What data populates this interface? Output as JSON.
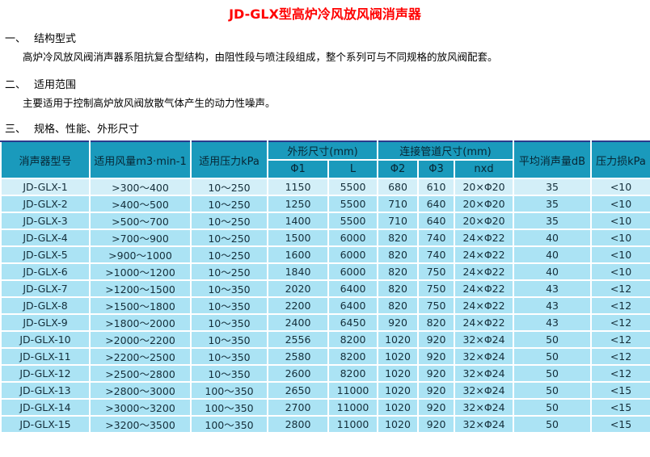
{
  "page": {
    "title": "JD-GLX型高炉冷风放风阀消声器"
  },
  "sections": [
    {
      "num": "一、",
      "title": "结构型式",
      "body": "高炉冷风放风阀消声器系阻抗复合型结构，由阻性段与喷注段组成，整个系列可与不同规格的放风阀配套。"
    },
    {
      "num": "二、",
      "title": "适用范围",
      "body": "主要适用于控制高炉放风阀放散气体产生的动力性噪声。"
    },
    {
      "num": "三、",
      "title": "规格、性能、外形尺寸",
      "body": ""
    }
  ],
  "table": {
    "column_keys": [
      "model",
      "air-volume",
      "pressure",
      "phi1",
      "length",
      "phi2",
      "phi3",
      "nxd",
      "noise-reduction",
      "pressure-loss"
    ],
    "header": {
      "model": "消声器型号",
      "air_volume": "适用风量m3·min-1",
      "pressure": "适用压力kPa",
      "outline_group": "外形尺寸(mm)",
      "phi1": "Φ1",
      "length": "L",
      "pipe_group": "连接管道尺寸(mm)",
      "phi2": "Φ2",
      "phi3": "Φ3",
      "nxd": "nxd",
      "noise_reduction": "平均消声量dB",
      "pressure_loss": "压力损kPa"
    },
    "rows": [
      [
        "JD-GLX-1",
        ">300～400",
        "10～250",
        "1150",
        "5500",
        "680",
        "610",
        "20×Φ20",
        "35",
        "<10"
      ],
      [
        "JD-GLX-2",
        ">400～500",
        "10～250",
        "1250",
        "5500",
        "710",
        "640",
        "20×Φ20",
        "35",
        "<10"
      ],
      [
        "JD-GLX-3",
        ">500～700",
        "10～250",
        "1400",
        "5500",
        "710",
        "640",
        "20×Φ20",
        "35",
        "<10"
      ],
      [
        "JD-GLX-4",
        ">700～900",
        "10～250",
        "1500",
        "6000",
        "820",
        "740",
        "24×Φ22",
        "40",
        "<10"
      ],
      [
        "JD-GLX-5",
        ">900～1000",
        "10～250",
        "1600",
        "6000",
        "820",
        "740",
        "24×Φ22",
        "40",
        "<10"
      ],
      [
        "JD-GLX-6",
        ">1000～1200",
        "10～250",
        "1840",
        "6000",
        "820",
        "750",
        "24×Φ22",
        "40",
        "<10"
      ],
      [
        "JD-GLX-7",
        ">1200～1500",
        "10～350",
        "2020",
        "6400",
        "820",
        "750",
        "24×Φ22",
        "43",
        "<12"
      ],
      [
        "JD-GLX-8",
        ">1500～1800",
        "10～350",
        "2200",
        "6400",
        "820",
        "750",
        "24×Φ22",
        "43",
        "<12"
      ],
      [
        "JD-GLX-9",
        ">1800～2000",
        "10～350",
        "2400",
        "6450",
        "920",
        "820",
        "24×Φ22",
        "43",
        "<12"
      ],
      [
        "JD-GLX-10",
        ">2000～2200",
        "10～350",
        "2556",
        "8200",
        "1020",
        "920",
        "32×Φ24",
        "50",
        "<12"
      ],
      [
        "JD-GLX-11",
        ">2200～2500",
        "10～350",
        "2580",
        "8200",
        "1020",
        "920",
        "32×Φ24",
        "50",
        "<12"
      ],
      [
        "JD-GLX-12",
        ">2500～2800",
        "10～350",
        "2600",
        "8200",
        "1020",
        "920",
        "32×Φ24",
        "50",
        "<12"
      ],
      [
        "JD-GLX-13",
        ">2800～3000",
        "100～350",
        "2650",
        "11000",
        "1020",
        "920",
        "32×Φ24",
        "50",
        "<15"
      ],
      [
        "JD-GLX-14",
        ">3000～3200",
        "100～350",
        "2700",
        "11000",
        "1020",
        "920",
        "32×Φ24",
        "50",
        "<15"
      ],
      [
        "JD-GLX-15",
        ">3200～3500",
        "100～350",
        "2800",
        "11000",
        "1020",
        "920",
        "32×Φ24",
        "50",
        "<15"
      ]
    ]
  },
  "colors": {
    "title_red": "#FF0000",
    "header_bg": "#1A9ABC",
    "header_text": "#072634",
    "row_bg": "#ABE3F4",
    "first_row_bg": "#D3EFF8",
    "cell_text": "#142E3A",
    "grid_line": "#FFFFFF",
    "table_top_border": "#2B3A8C"
  }
}
